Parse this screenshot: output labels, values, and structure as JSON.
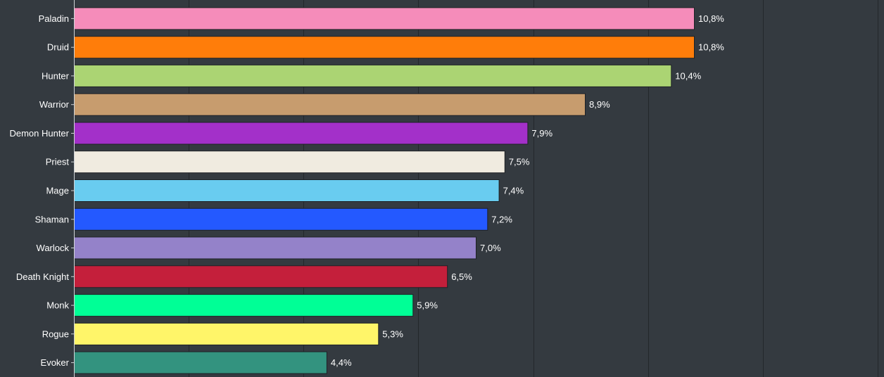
{
  "chart_data": {
    "type": "bar",
    "orientation": "horizontal",
    "categories": [
      "Paladin",
      "Druid",
      "Hunter",
      "Warrior",
      "Demon Hunter",
      "Priest",
      "Mage",
      "Shaman",
      "Warlock",
      "Death Knight",
      "Monk",
      "Rogue",
      "Evoker"
    ],
    "values": [
      10.8,
      10.8,
      10.4,
      8.9,
      7.9,
      7.5,
      7.4,
      7.2,
      7.0,
      6.5,
      5.9,
      5.3,
      4.4
    ],
    "value_labels": [
      "10,8%",
      "10,8%",
      "10,4%",
      "8,9%",
      "7,9%",
      "7,5%",
      "7,4%",
      "7,2%",
      "7,0%",
      "6,5%",
      "5,9%",
      "5,3%",
      "4,4%"
    ],
    "colors": [
      "#f58cba",
      "#ff7d0a",
      "#abd473",
      "#c79c6e",
      "#a330c9",
      "#f0ebe0",
      "#69ccf0",
      "#2459ff",
      "#9482c9",
      "#c41f3b",
      "#00ff96",
      "#fff569",
      "#33937f"
    ],
    "xlim": [
      0,
      14
    ],
    "grid": true,
    "title": "",
    "xlabel": "",
    "ylabel": ""
  }
}
